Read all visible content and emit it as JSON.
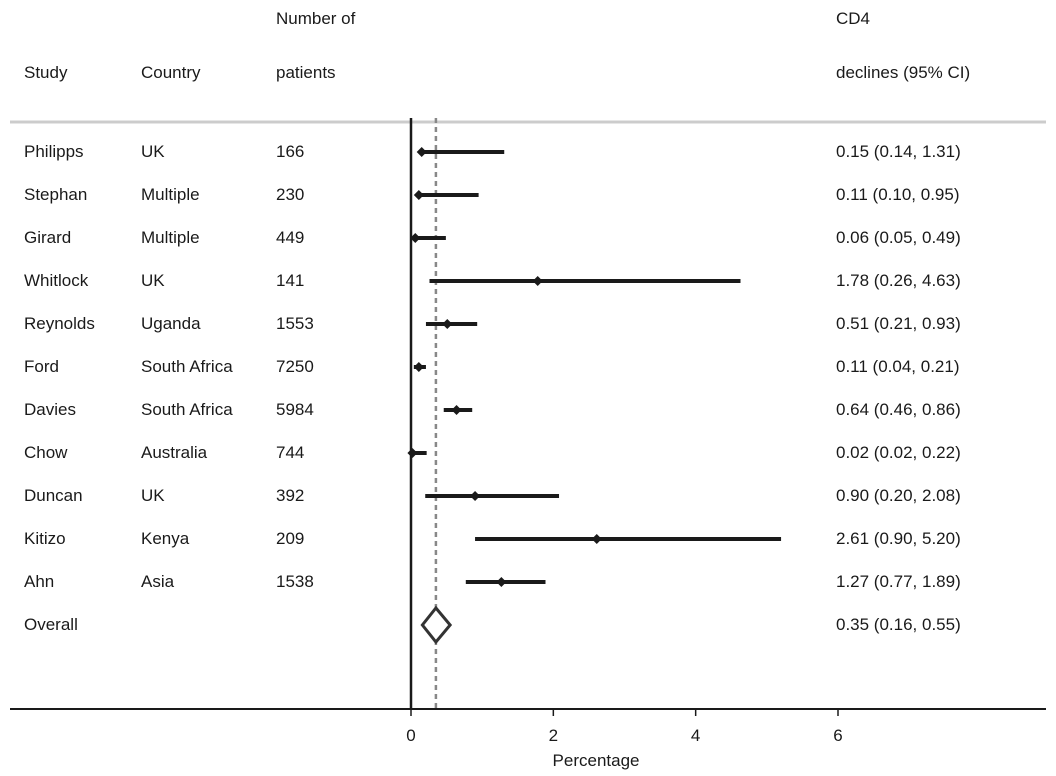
{
  "headers": {
    "study": "Study",
    "country": "Country",
    "patients_line1": "Number of",
    "patients_line2": "patients",
    "ci_line1": "CD4",
    "ci_line2": "declines (95% CI)"
  },
  "chart_data": {
    "type": "forest",
    "xlabel": "Percentage",
    "xlim": [
      0,
      6
    ],
    "xticks": [
      0,
      2,
      4,
      6
    ],
    "reference_line": 0.35,
    "colors": {
      "line": "#1a1a1a",
      "reference": "#888888",
      "diamond": "#333333",
      "divider": "#cccccc"
    },
    "rows": [
      {
        "study": "Philipps",
        "country": "UK",
        "patients": "166",
        "estimate": 0.15,
        "lower": 0.14,
        "upper": 1.31,
        "ci_text": "0.15 (0.14, 1.31)"
      },
      {
        "study": "Stephan",
        "country": "Multiple",
        "patients": "230",
        "estimate": 0.11,
        "lower": 0.1,
        "upper": 0.95,
        "ci_text": "0.11 (0.10, 0.95)"
      },
      {
        "study": "Girard",
        "country": "Multiple",
        "patients": "449",
        "estimate": 0.06,
        "lower": 0.05,
        "upper": 0.49,
        "ci_text": "0.06 (0.05, 0.49)"
      },
      {
        "study": "Whitlock",
        "country": "UK",
        "patients": "141",
        "estimate": 1.78,
        "lower": 0.26,
        "upper": 4.63,
        "ci_text": "1.78 (0.26, 4.63)"
      },
      {
        "study": "Reynolds",
        "country": "Uganda",
        "patients": "1553",
        "estimate": 0.51,
        "lower": 0.21,
        "upper": 0.93,
        "ci_text": "0.51 (0.21, 0.93)"
      },
      {
        "study": "Ford",
        "country": "South Africa",
        "patients": "7250",
        "estimate": 0.11,
        "lower": 0.04,
        "upper": 0.21,
        "ci_text": "0.11 (0.04, 0.21)"
      },
      {
        "study": "Davies",
        "country": "South Africa",
        "patients": "5984",
        "estimate": 0.64,
        "lower": 0.46,
        "upper": 0.86,
        "ci_text": "0.64 (0.46, 0.86)"
      },
      {
        "study": "Chow",
        "country": "Australia",
        "patients": "744",
        "estimate": 0.02,
        "lower": 0.02,
        "upper": 0.22,
        "ci_text": "0.02 (0.02, 0.22)"
      },
      {
        "study": "Duncan",
        "country": "UK",
        "patients": "392",
        "estimate": 0.9,
        "lower": 0.2,
        "upper": 2.08,
        "ci_text": "0.90 (0.20, 2.08)"
      },
      {
        "study": "Kitizo",
        "country": "Kenya",
        "patients": "209",
        "estimate": 2.61,
        "lower": 0.9,
        "upper": 5.2,
        "ci_text": "2.61 (0.90, 5.20)"
      },
      {
        "study": "Ahn",
        "country": "Asia",
        "patients": "1538",
        "estimate": 1.27,
        "lower": 0.77,
        "upper": 1.89,
        "ci_text": "1.27 (0.77, 1.89)"
      }
    ],
    "overall": {
      "study": "Overall",
      "estimate": 0.35,
      "lower": 0.16,
      "upper": 0.55,
      "ci_text": "0.35 (0.16, 0.55)"
    }
  }
}
